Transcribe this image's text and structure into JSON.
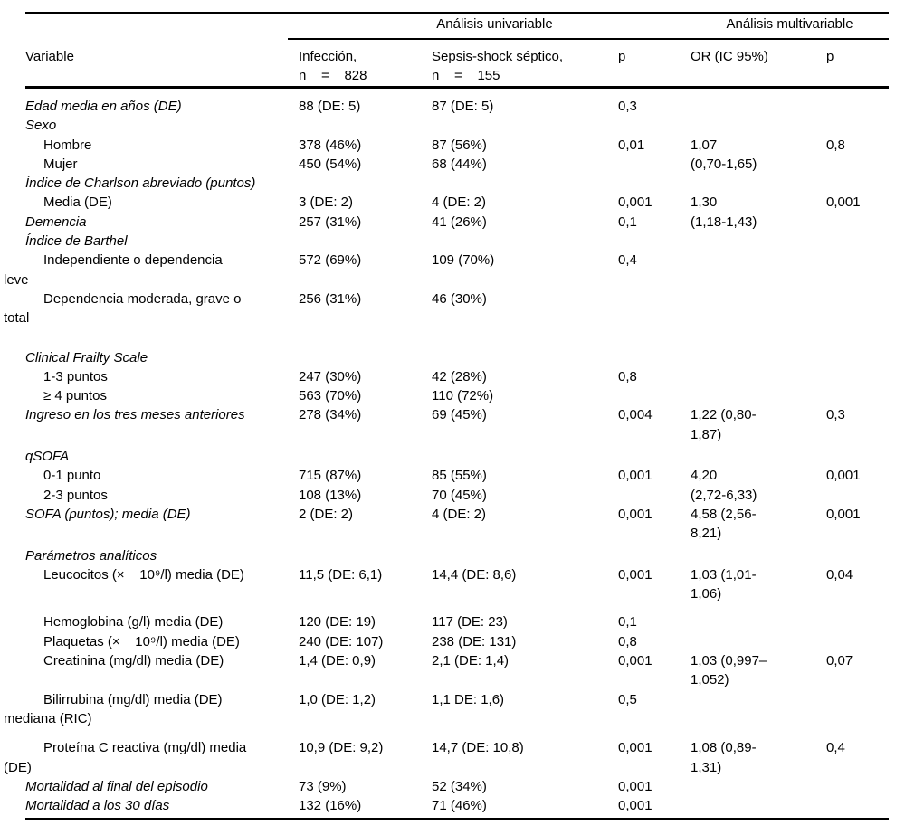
{
  "table": {
    "header": {
      "group_univariable": "Análisis univariable",
      "group_multivariable": "Análisis multivariable",
      "col_variable": "Variable",
      "col_infeccion": "Infección,\nn    =    828",
      "col_sepsis": "Sepsis-shock séptico,\nn    =    155",
      "col_p_univariable": "p",
      "col_or": "OR (IC 95%)",
      "col_p_multivariable": "p"
    },
    "rows": [
      {
        "style": "section",
        "variable": "Edad media en años (DE)",
        "infeccion": "88 (DE: 5)",
        "sepsis": "87 (DE: 5)",
        "p1": "0,3",
        "or": "",
        "p2": ""
      },
      {
        "style": "section",
        "variable": "Sexo",
        "infeccion": "",
        "sepsis": "",
        "p1": "",
        "or": "",
        "p2": ""
      },
      {
        "style": "item",
        "variable": "Hombre",
        "infeccion": "378 (46%)",
        "sepsis": "87 (56%)",
        "p1": "0,01",
        "or": "1,07",
        "p2": "0,8"
      },
      {
        "style": "item",
        "variable": "Mujer",
        "infeccion": "450 (54%)",
        "sepsis": "68 (44%)",
        "p1": "",
        "or": "(0,70-1,65)",
        "p2": ""
      },
      {
        "style": "section",
        "variable": "Índice de Charlson abreviado (puntos)",
        "infeccion": "",
        "sepsis": "",
        "p1": "",
        "or": "",
        "p2": ""
      },
      {
        "style": "item",
        "variable": "Media (DE)",
        "infeccion": "3 (DE: 2)",
        "sepsis": "4 (DE: 2)",
        "p1": "0,001",
        "or": "1,30",
        "p2": "0,001"
      },
      {
        "style": "section",
        "variable": "Demencia",
        "infeccion": "257 (31%)",
        "sepsis": "41 (26%)",
        "p1": "0,1",
        "or": "(1,18-1,43)",
        "p2": ""
      },
      {
        "style": "section",
        "variable": "Índice de Barthel",
        "infeccion": "",
        "sepsis": "",
        "p1": "",
        "or": "",
        "p2": ""
      },
      {
        "style": "item",
        "variable": "Independiente o dependencia\nleve",
        "infeccion": "572 (69%)",
        "sepsis": "109 (70%)",
        "p1": "0,4",
        "or": "",
        "p2": ""
      },
      {
        "style": "item",
        "variable": "Dependencia moderada, grave o\ntotal",
        "infeccion": "256 (31%)",
        "sepsis": "46 (30%)",
        "p1": "",
        "or": "",
        "p2": ""
      },
      {
        "style": "section",
        "gap": "g22",
        "variable": "Clinical Frailty Scale",
        "infeccion": "",
        "sepsis": "",
        "p1": "",
        "or": "",
        "p2": ""
      },
      {
        "style": "item",
        "variable": "1-3 puntos",
        "infeccion": "247 (30%)",
        "sepsis": "42 (28%)",
        "p1": "0,8",
        "or": "",
        "p2": ""
      },
      {
        "style": "item",
        "variable": "≥ 4 puntos",
        "infeccion": "563 (70%)",
        "sepsis": "110 (72%)",
        "p1": "",
        "or": "",
        "p2": ""
      },
      {
        "style": "section",
        "variable": "Ingreso en los tres meses anteriores",
        "infeccion": "278 (34%)",
        "sepsis": "69 (45%)",
        "p1": "0,004",
        "or": "1,22 (0,80-\n1,87)",
        "p2": "0,3"
      },
      {
        "style": "section",
        "gap": "g3",
        "variable": "qSOFA",
        "infeccion": "",
        "sepsis": "",
        "p1": "",
        "or": "",
        "p2": ""
      },
      {
        "style": "item",
        "variable": "0-1 punto",
        "infeccion": "715 (87%)",
        "sepsis": "85 (55%)",
        "p1": "0,001",
        "or": "4,20",
        "p2": "0,001"
      },
      {
        "style": "item",
        "variable": "2-3 puntos",
        "infeccion": "108 (13%)",
        "sepsis": "70 (45%)",
        "p1": "",
        "or": "(2,72-6,33)",
        "p2": ""
      },
      {
        "style": "section",
        "variable": "SOFA (puntos); media (DE)",
        "infeccion": "2 (DE: 2)",
        "sepsis": "4 (DE: 2)",
        "p1": "0,001",
        "or": "4,58 (2,56-\n8,21)",
        "p2": "0,001"
      },
      {
        "style": "section",
        "gap": "g3",
        "variable": "Parámetros analíticos",
        "infeccion": "",
        "sepsis": "",
        "p1": "",
        "or": "",
        "p2": ""
      },
      {
        "style": "item",
        "variable": "Leucocitos (×    10⁹/l) media (DE)",
        "infeccion": "11,5 (DE: 6,1)",
        "sepsis": "14,4 (DE: 8,6)",
        "p1": "0,001",
        "or": "1,03 (1,01-\n1,06)",
        "p2": "0,04"
      },
      {
        "style": "item",
        "gap": "g10",
        "variable": "Hemoglobina (g/l) media (DE)",
        "infeccion": "120 (DE: 19)",
        "sepsis": "117 (DE: 23)",
        "p1": "0,1",
        "or": "",
        "p2": ""
      },
      {
        "style": "item",
        "variable": "Plaquetas (×    10⁹/l) media (DE)",
        "infeccion": "240 (DE: 107)",
        "sepsis": "238 (DE: 131)",
        "p1": "0,8",
        "or": "",
        "p2": ""
      },
      {
        "style": "item",
        "variable": "Creatinina (mg/dl) media (DE)",
        "infeccion": "1,4 (DE: 0,9)",
        "sepsis": "2,1 (DE: 1,4)",
        "p1": "0,001",
        "or": "1,03 (0,997–\n1,052)",
        "p2": "0,07"
      },
      {
        "style": "item",
        "variable": "Bilirrubina (mg/dl) media (DE)\nmediana (RIC)",
        "infeccion": "1,0 (DE: 1,2)",
        "sepsis": "1,1 DE: 1,6)",
        "p1": "0,5",
        "or": "",
        "p2": ""
      },
      {
        "style": "item",
        "gap": "g11",
        "variable": "Proteína C reactiva (mg/dl) media\n(DE)",
        "infeccion": "10,9 (DE: 9,2)",
        "sepsis": "14,7 (DE: 10,8)",
        "p1": "0,001",
        "or": "1,08 (0,89-\n1,31)",
        "p2": "0,4"
      },
      {
        "style": "section",
        "variable": "Mortalidad al final del episodio",
        "infeccion": "73 (9%)",
        "sepsis": "52 (34%)",
        "p1": "0,001",
        "or": "",
        "p2": ""
      },
      {
        "style": "section",
        "variable": "Mortalidad a los 30 días",
        "infeccion": "132 (16%)",
        "sepsis": "71 (46%)",
        "p1": "0,001",
        "or": "",
        "p2": ""
      }
    ]
  }
}
